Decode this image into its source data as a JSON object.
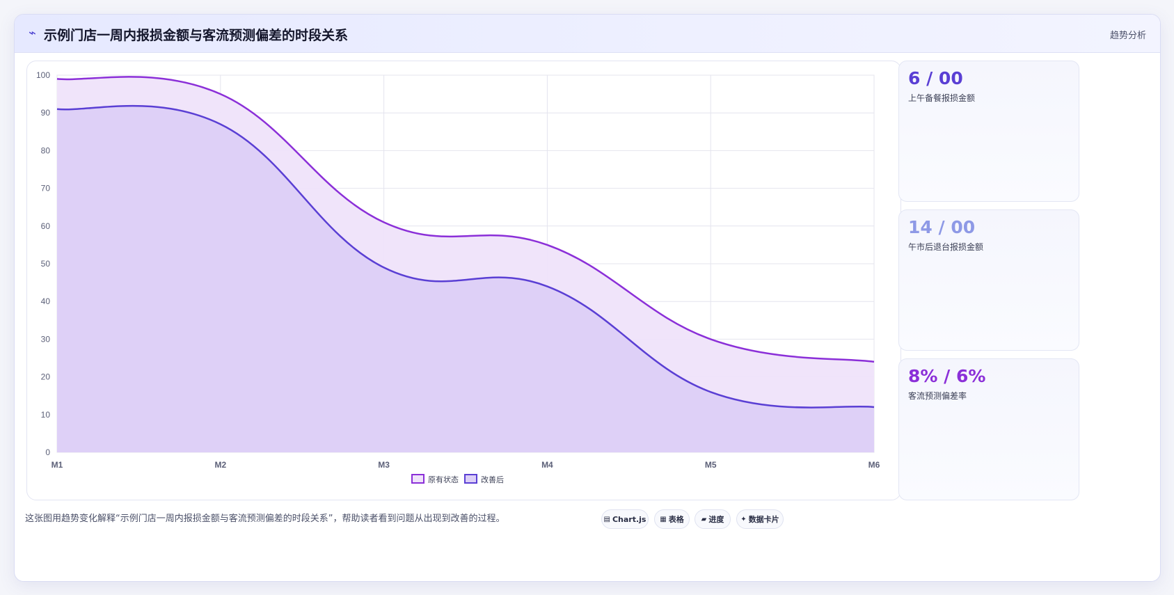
{
  "header": {
    "icon": "trend-icon",
    "title": "示例门店一周内报损金额与客流预测偏差的时段关系",
    "tag": "趋势分析"
  },
  "chart_data": {
    "type": "area",
    "categories": [
      "M1",
      "M2",
      "M3",
      "M4",
      "M5",
      "M6"
    ],
    "series": [
      {
        "name": "原有状态",
        "values": [
          99,
          95,
          61,
          55,
          30,
          24
        ],
        "color": "#8b2fd8",
        "fill": "#efe3fa"
      },
      {
        "name": "改善后",
        "values": [
          91,
          87,
          49,
          44,
          16,
          12
        ],
        "color": "#5a3fd4",
        "fill": "#dccff7"
      }
    ],
    "title": "",
    "xlabel": "",
    "ylabel": "",
    "ylim": [
      0,
      100
    ],
    "yticks": [
      0,
      10,
      20,
      30,
      40,
      50,
      60,
      70,
      80,
      90,
      100
    ],
    "grid": true,
    "legend_position": "bottom"
  },
  "kpis": [
    {
      "value": "6 / 00",
      "label": "上午备餐报损金额",
      "color": "#5a3fd4"
    },
    {
      "value": "14 / 00",
      "label": "午市后退台报损金额",
      "color": "#8e99e6"
    },
    {
      "value": "8% / 6%",
      "label": "客流预测偏差率",
      "color": "#8b2fd8"
    }
  ],
  "footer": {
    "caption": "这张图用趋势变化解释“示例门店一周内报损金额与客流预测偏差的时段关系”，帮助读者看到问题从出现到改善的过程。",
    "chips": [
      {
        "icon": "chart-icon",
        "label": "Chart.js"
      },
      {
        "icon": "table-icon",
        "label": "表格"
      },
      {
        "icon": "progress-icon",
        "label": "进度"
      },
      {
        "icon": "sparkle-icon",
        "label": "数据卡片"
      }
    ]
  }
}
